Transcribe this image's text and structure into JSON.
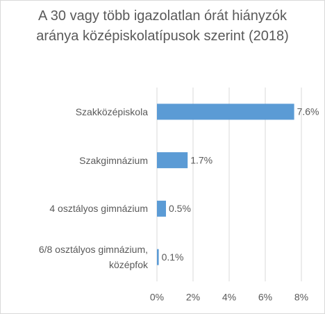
{
  "chart_data": {
    "type": "barh",
    "title": "A 30 vagy több igazolatlan órát hiányzók aránya középiskolatípusok szerint (2018)",
    "categories": [
      "Szakközépiskola",
      "Szakgimnázium",
      "4 osztályos gimnázium",
      "6/8 osztályos gimnázium, középfok"
    ],
    "values": [
      7.6,
      1.7,
      0.5,
      0.1
    ],
    "value_labels": [
      "7.6%",
      "1.7%",
      "0.5%",
      "0.1%"
    ],
    "color": "#5b9bd5",
    "xlim": [
      0,
      8
    ],
    "xticks": [
      {
        "value": 0,
        "label": "0%"
      },
      {
        "value": 2,
        "label": "2%"
      },
      {
        "value": 4,
        "label": "4%"
      },
      {
        "value": 6,
        "label": "6%"
      },
      {
        "value": 8,
        "label": "8%"
      }
    ],
    "grid": true
  }
}
